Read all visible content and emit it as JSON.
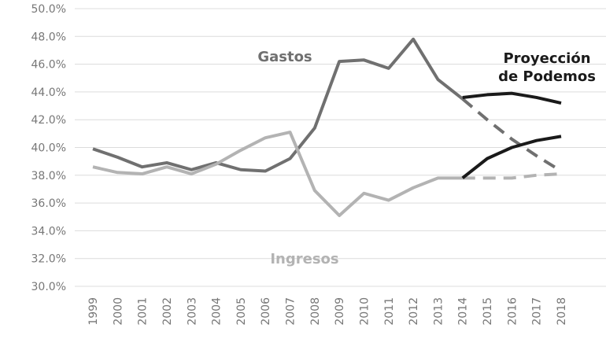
{
  "chart_data": {
    "type": "line",
    "categories": [
      "1999",
      "2000",
      "2001",
      "2002",
      "2003",
      "2004",
      "2005",
      "2006",
      "2007",
      "2008",
      "2009",
      "2010",
      "2011",
      "2012",
      "2013",
      "2014",
      "2015",
      "2016",
      "2017",
      "2018"
    ],
    "ylim": [
      30,
      50
    ],
    "yticks": [
      {
        "value": 30,
        "label": "30.0%"
      },
      {
        "value": 32,
        "label": "32.0%"
      },
      {
        "value": 34,
        "label": "34.0%"
      },
      {
        "value": 36,
        "label": "36.0%"
      },
      {
        "value": 38,
        "label": "38.0%"
      },
      {
        "value": 40,
        "label": "40.0%"
      },
      {
        "value": 42,
        "label": "42.0%"
      },
      {
        "value": 44,
        "label": "44.0%"
      },
      {
        "value": 46,
        "label": "46.0%"
      },
      {
        "value": 48,
        "label": "48.0%"
      },
      {
        "value": 50,
        "label": "50.0%"
      }
    ],
    "grid": true,
    "series": [
      {
        "name": "Gastos",
        "color": "#707070",
        "values": [
          39.9,
          39.3,
          38.6,
          38.9,
          38.4,
          38.9,
          38.4,
          38.3,
          39.2,
          41.4,
          46.2,
          46.3,
          45.7,
          47.8,
          44.9,
          43.5,
          null,
          null,
          null,
          null
        ],
        "projected_values": [
          null,
          null,
          null,
          null,
          null,
          null,
          null,
          null,
          null,
          null,
          null,
          null,
          null,
          null,
          null,
          43.5,
          42.0,
          40.6,
          39.4,
          38.3
        ]
      },
      {
        "name": "Ingresos",
        "color": "#b3b3b3",
        "values": [
          38.6,
          38.2,
          38.1,
          38.6,
          38.1,
          38.8,
          39.8,
          40.7,
          41.1,
          36.9,
          35.1,
          36.7,
          36.2,
          37.1,
          37.8,
          37.8,
          null,
          null,
          null,
          null
        ],
        "projected_values": [
          null,
          null,
          null,
          null,
          null,
          null,
          null,
          null,
          null,
          null,
          null,
          null,
          null,
          null,
          null,
          37.8,
          37.8,
          37.8,
          38.0,
          38.1
        ]
      }
    ],
    "projection": {
      "label": [
        "Proyección",
        "de Podemos"
      ],
      "color": "#1a1a1a",
      "lines": [
        [
          null,
          null,
          null,
          null,
          null,
          null,
          null,
          null,
          null,
          null,
          null,
          null,
          null,
          null,
          null,
          43.6,
          43.8,
          43.9,
          43.6,
          43.2
        ],
        [
          null,
          null,
          null,
          null,
          null,
          null,
          null,
          null,
          null,
          null,
          null,
          null,
          null,
          null,
          null,
          37.8,
          39.2,
          40.0,
          40.5,
          40.8
        ]
      ]
    }
  }
}
